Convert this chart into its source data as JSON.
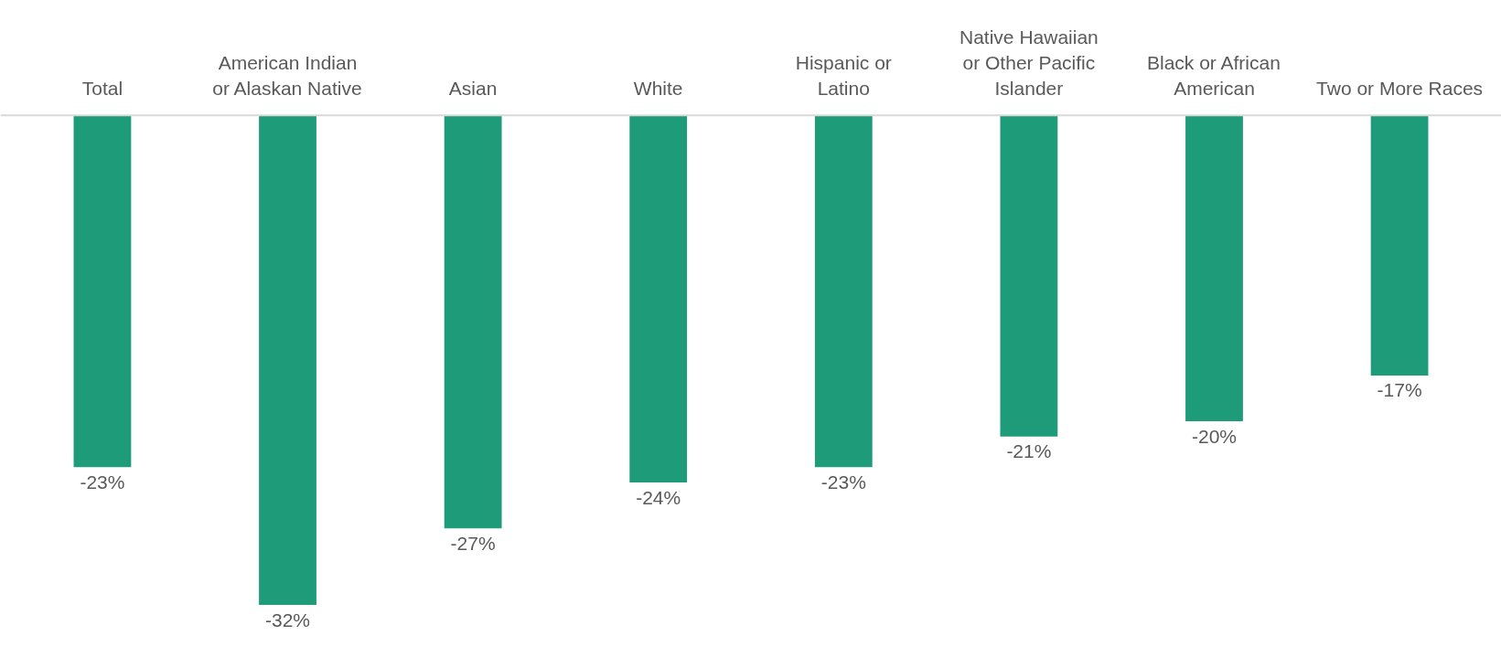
{
  "chart_data": {
    "type": "bar",
    "categories": [
      "Total",
      "American Indian or Alaskan Native",
      "Asian",
      "White",
      "Hispanic or Latino",
      "Native Hawaiian or Other Pacific Islander",
      "Black or African American",
      "Two or More Races"
    ],
    "values": [
      -23,
      -32,
      -27,
      -24,
      -23,
      -21,
      -20,
      -17
    ],
    "value_labels": [
      "-23%",
      "-32%",
      "-27%",
      "-24%",
      "-23%",
      "-21%",
      "-20%",
      "-17%"
    ],
    "color": "#1e9b78",
    "grid": false
  }
}
